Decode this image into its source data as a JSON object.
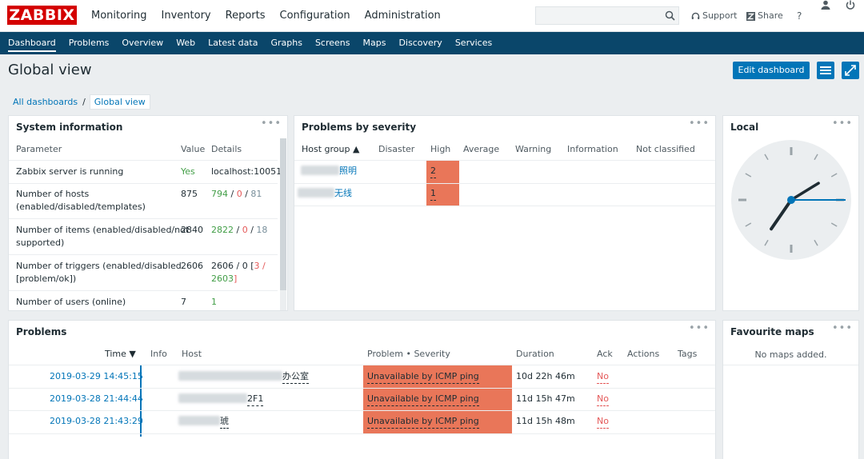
{
  "brand": {
    "logo_text": "ZABBIX"
  },
  "main_menu": [
    "Monitoring",
    "Inventory",
    "Reports",
    "Configuration",
    "Administration"
  ],
  "header_tools": {
    "support": "Support",
    "share": "Share",
    "help": "?"
  },
  "sub_nav": [
    "Dashboard",
    "Problems",
    "Overview",
    "Web",
    "Latest data",
    "Graphs",
    "Screens",
    "Maps",
    "Discovery",
    "Services"
  ],
  "page": {
    "title": "Global view",
    "edit_button": "Edit dashboard",
    "breadcrumb": {
      "root": "All dashboards",
      "separator": "/",
      "current": "Global view"
    }
  },
  "system_info": {
    "title": "System information",
    "dots": "•••",
    "headers": {
      "parameter": "Parameter",
      "value": "Value",
      "details": "Details"
    },
    "rows": [
      {
        "param": "Zabbix server is running",
        "value": "Yes",
        "details": "localhost:10051"
      },
      {
        "param1": "Number of hosts",
        "param2": "(enabled/disabled/templates)",
        "value": "875",
        "d1": "794",
        "s1": " / ",
        "d2": "0",
        "s2": " / ",
        "d3": "81"
      },
      {
        "param1": "Number of items (enabled/disabled/not",
        "param2": "supported)",
        "value": "2840",
        "d1": "2822",
        "s1": " / ",
        "d2": "0",
        "s2": " / ",
        "d3": "18"
      },
      {
        "param1": "Number of triggers (enabled/disabled",
        "param2": "[problem/ok])",
        "value": "2606",
        "d1": "2606 / 0 [",
        "d2": "3",
        "s2": " /",
        "d3": "2603",
        "s3": "]"
      },
      {
        "param": "Number of users (online)",
        "value": "7",
        "details": "1"
      }
    ]
  },
  "problems_by_severity": {
    "title": "Problems by severity",
    "dots": "•••",
    "headers": [
      "Host group ▲",
      "Disaster",
      "High",
      "Average",
      "Warning",
      "Information",
      "Not classified"
    ],
    "rows": [
      {
        "group_suffix": "照明",
        "high": "2"
      },
      {
        "group_suffix": "无线",
        "high": "1"
      }
    ]
  },
  "local_clock": {
    "title": "Local",
    "dots": "•••",
    "hour": 7,
    "minute": 9,
    "second": 45
  },
  "problems": {
    "title": "Problems",
    "dots": "•••",
    "headers": {
      "time": "Time ▼",
      "info": "Info",
      "host": "Host",
      "problem": "Problem • Severity",
      "duration": "Duration",
      "ack": "Ack",
      "actions": "Actions",
      "tags": "Tags"
    },
    "rows": [
      {
        "time": "2019-03-29 14:45:15",
        "host_suffix": "办公室",
        "problem": "Unavailable by ICMP ping",
        "duration": "10d 22h 46m",
        "ack": "No"
      },
      {
        "time": "2019-03-28 21:44:44",
        "host_suffix": "2F1",
        "problem": "Unavailable by ICMP ping",
        "duration": "11d 15h 47m",
        "ack": "No"
      },
      {
        "time": "2019-03-28 21:43:29",
        "host_suffix": "琥",
        "problem": "Unavailable by ICMP ping",
        "duration": "11d 15h 48m",
        "ack": "No"
      }
    ]
  },
  "favourite_maps": {
    "title": "Favourite maps",
    "dots": "•••",
    "empty_text": "No maps added."
  },
  "colors": {
    "brand_red": "#d40000",
    "nav_blue": "#0a466a",
    "accent_blue": "#0275b8",
    "severity_high": "#e97659",
    "ok_green": "#429e47",
    "problem_red": "#e45959"
  }
}
